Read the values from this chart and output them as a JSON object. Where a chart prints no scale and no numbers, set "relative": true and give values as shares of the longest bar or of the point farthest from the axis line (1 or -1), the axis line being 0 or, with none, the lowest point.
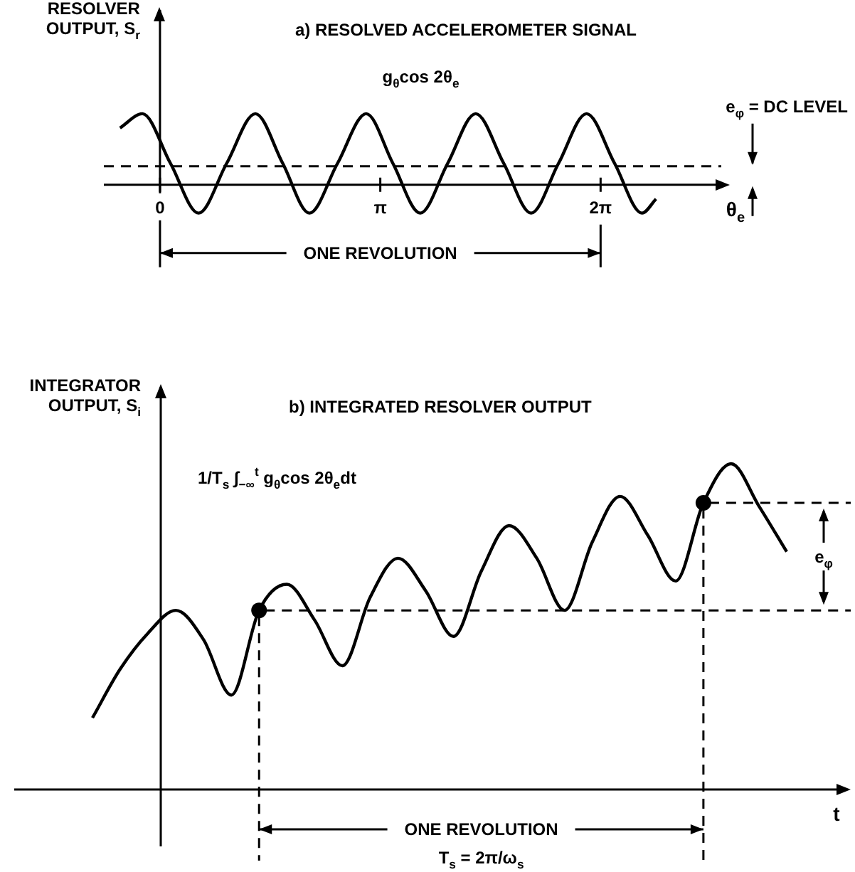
{
  "chart_data": [
    {
      "type": "line",
      "title": "a) RESOLVED ACCELEROMETER SIGNAL",
      "xlabel": "θ$_{e}$",
      "ylabel": "RESOLVER OUTPUT, S$_{r}$",
      "relative": true,
      "marker": "none",
      "x": [
        -0.57,
        -0.25,
        0.15,
        0.55,
        0.95,
        1.36,
        1.75,
        2.13,
        2.53,
        2.94,
        3.32,
        3.71,
        4.1,
        4.5,
        4.9,
        5.29,
        5.68,
        6.08,
        6.48,
        6.87,
        7.07
      ],
      "xlim": [
        -0.8,
        8.0
      ],
      "xticks": [
        0,
        {
          "value": 3.14,
          "label": "π"
        },
        {
          "value": 6.28,
          "label": "2π"
        }
      ],
      "series": [
        {
          "name": "g$_{θ}$cos 2θ$_{e}$",
          "color": "#000000",
          "values": [
            0.8,
            1,
            0.3,
            -0.4,
            0.3,
            1,
            0.3,
            -0.4,
            0.3,
            1,
            0.3,
            -0.4,
            0.3,
            1,
            0.3,
            -0.4,
            0.3,
            1,
            0.3,
            -0.4,
            -0.2
          ]
        }
      ],
      "ref_lines": [
        {
          "axis": "y",
          "value": 0.26,
          "label": "e$_{φ}$ = DC LEVEL",
          "line_style": "dashed",
          "color": "#000000"
        }
      ],
      "annotations": [
        "ONE REVOLUTION"
      ]
    },
    {
      "type": "line",
      "title": "b) INTEGRATED RESOLVER OUTPUT",
      "xlabel": "t",
      "ylabel": "INTEGRATOR OUTPUT, S$_{i}$",
      "relative": true,
      "categories": [
        null,
        null,
        null,
        null,
        null,
        null,
        null,
        null,
        null,
        null,
        null,
        null,
        null,
        null,
        null,
        null,
        null,
        null,
        null,
        null,
        null,
        null,
        null,
        null,
        null,
        null
      ],
      "series": [
        {
          "name": "1/T$_{s}$ ∫$_{−∞}$$^{t}$ g$_{θ}$cos 2θ$_{e}$dt",
          "color": "#000000",
          "marker": "none",
          "line_style": "solid",
          "values": [
            0.22,
            0.37,
            0.48,
            0.55,
            0.46,
            0.29,
            0.55,
            0.63,
            0.52,
            0.38,
            0.59,
            0.71,
            0.61,
            0.47,
            0.67,
            0.81,
            0.71,
            0.55,
            0.76,
            0.9,
            0.78,
            0.64,
            0.88,
            1,
            0.87,
            0.73
          ]
        }
      ],
      "ref_lines": [
        {
          "axis": "y",
          "value": 0.55,
          "line_style": "dashed",
          "color": "#000000"
        },
        {
          "axis": "y",
          "value": 0.88,
          "line_style": "dashed",
          "color": "#000000"
        }
      ],
      "annotations": [
        "ONE REVOLUTION",
        "T$_{s}$ = 2π/ω$_{s}$",
        "e$_{φ}$"
      ]
    }
  ]
}
